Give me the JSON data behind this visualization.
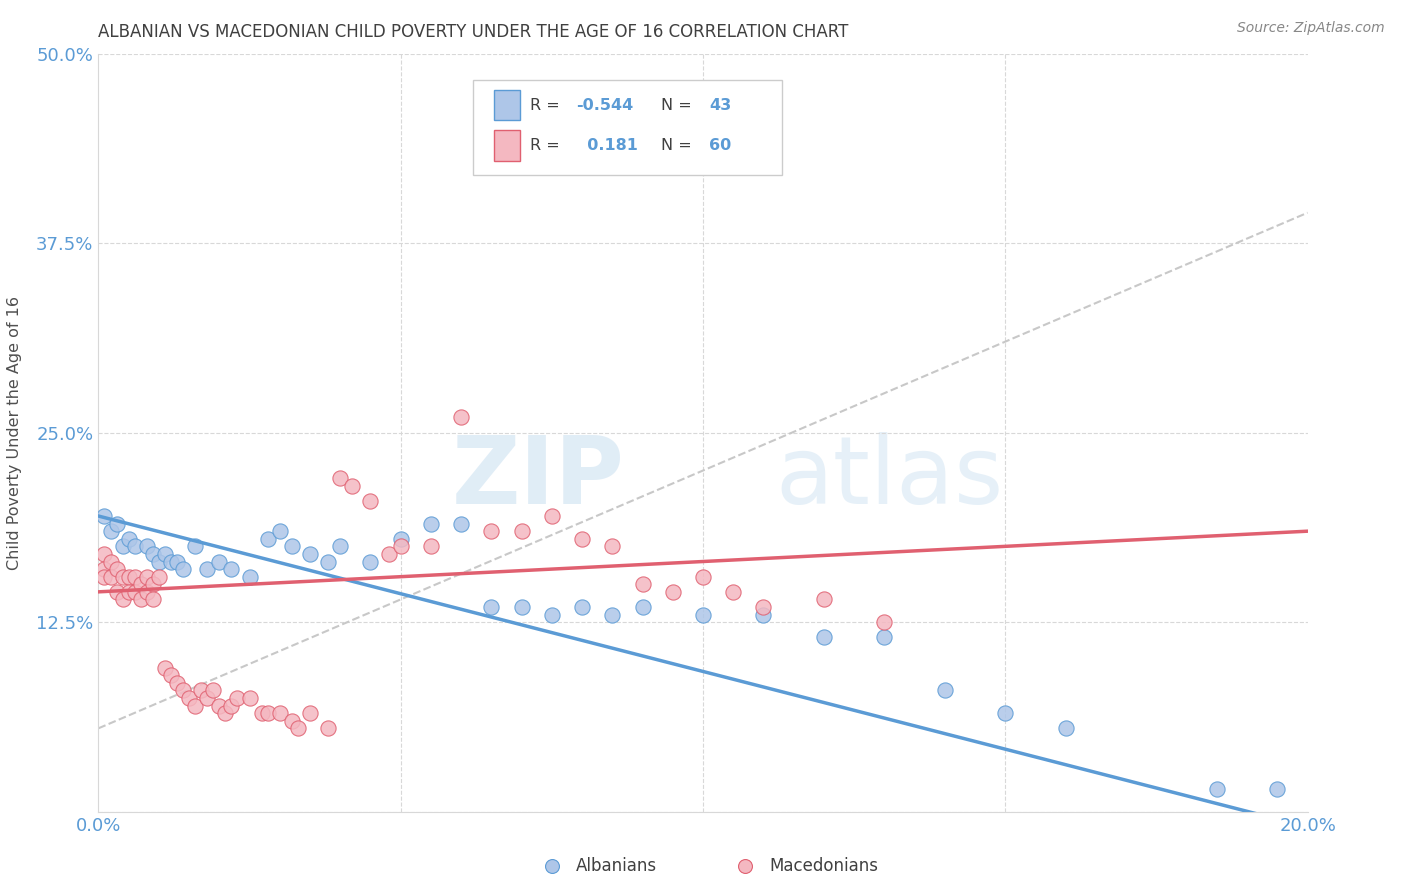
{
  "title": "ALBANIAN VS MACEDONIAN CHILD POVERTY UNDER THE AGE OF 16 CORRELATION CHART",
  "source": "Source: ZipAtlas.com",
  "ylabel": "Child Poverty Under the Age of 16",
  "xlim": [
    0.0,
    0.2
  ],
  "ylim": [
    0.0,
    0.5
  ],
  "xticks": [
    0.0,
    0.05,
    0.1,
    0.15,
    0.2
  ],
  "xticklabels": [
    "0.0%",
    "",
    "",
    "",
    "20.0%"
  ],
  "yticks": [
    0.0,
    0.125,
    0.25,
    0.375,
    0.5
  ],
  "yticklabels": [
    "",
    "12.5%",
    "25.0%",
    "37.5%",
    "50.0%"
  ],
  "watermark_zip": "ZIP",
  "watermark_atlas": "atlas",
  "albanian_color": "#aec6e8",
  "macedonian_color": "#f4b8c1",
  "albanian_line_color": "#5b9bd5",
  "macedonian_line_color": "#e06070",
  "trend_line_color": "#c8c8c8",
  "axis_label_color": "#5b9bd5",
  "title_color": "#404040",
  "albanian_x": [
    0.001,
    0.002,
    0.003,
    0.004,
    0.005,
    0.006,
    0.008,
    0.009,
    0.01,
    0.011,
    0.012,
    0.013,
    0.014,
    0.016,
    0.018,
    0.02,
    0.022,
    0.025,
    0.028,
    0.03,
    0.032,
    0.035,
    0.038,
    0.04,
    0.045,
    0.05,
    0.055,
    0.06,
    0.065,
    0.07,
    0.075,
    0.08,
    0.085,
    0.09,
    0.1,
    0.11,
    0.12,
    0.13,
    0.14,
    0.15,
    0.16,
    0.185,
    0.195
  ],
  "albanian_y": [
    0.195,
    0.185,
    0.19,
    0.175,
    0.18,
    0.175,
    0.175,
    0.17,
    0.165,
    0.17,
    0.165,
    0.165,
    0.16,
    0.175,
    0.16,
    0.165,
    0.16,
    0.155,
    0.18,
    0.185,
    0.175,
    0.17,
    0.165,
    0.175,
    0.165,
    0.18,
    0.19,
    0.19,
    0.135,
    0.135,
    0.13,
    0.135,
    0.13,
    0.135,
    0.13,
    0.13,
    0.115,
    0.115,
    0.08,
    0.065,
    0.055,
    0.015,
    0.015
  ],
  "macedonian_x": [
    0.001,
    0.001,
    0.001,
    0.002,
    0.002,
    0.003,
    0.003,
    0.004,
    0.004,
    0.005,
    0.005,
    0.006,
    0.006,
    0.007,
    0.007,
    0.008,
    0.008,
    0.009,
    0.009,
    0.01,
    0.011,
    0.012,
    0.013,
    0.014,
    0.015,
    0.016,
    0.017,
    0.018,
    0.019,
    0.02,
    0.021,
    0.022,
    0.023,
    0.025,
    0.027,
    0.028,
    0.03,
    0.032,
    0.033,
    0.035,
    0.038,
    0.04,
    0.042,
    0.045,
    0.048,
    0.05,
    0.055,
    0.06,
    0.065,
    0.07,
    0.075,
    0.08,
    0.085,
    0.09,
    0.095,
    0.1,
    0.105,
    0.11,
    0.12,
    0.13
  ],
  "macedonian_y": [
    0.17,
    0.16,
    0.155,
    0.165,
    0.155,
    0.16,
    0.145,
    0.155,
    0.14,
    0.155,
    0.145,
    0.155,
    0.145,
    0.15,
    0.14,
    0.155,
    0.145,
    0.15,
    0.14,
    0.155,
    0.095,
    0.09,
    0.085,
    0.08,
    0.075,
    0.07,
    0.08,
    0.075,
    0.08,
    0.07,
    0.065,
    0.07,
    0.075,
    0.075,
    0.065,
    0.065,
    0.065,
    0.06,
    0.055,
    0.065,
    0.055,
    0.22,
    0.215,
    0.205,
    0.17,
    0.175,
    0.175,
    0.26,
    0.185,
    0.185,
    0.195,
    0.18,
    0.175,
    0.15,
    0.145,
    0.155,
    0.145,
    0.135,
    0.14,
    0.125
  ],
  "alb_trend_x": [
    0.0,
    0.2
  ],
  "alb_trend_y": [
    0.195,
    -0.01
  ],
  "mac_trend_x": [
    0.0,
    0.2
  ],
  "mac_trend_y": [
    0.145,
    0.185
  ],
  "gray_trend_x": [
    0.0,
    0.2
  ],
  "gray_trend_y": [
    0.055,
    0.395
  ]
}
